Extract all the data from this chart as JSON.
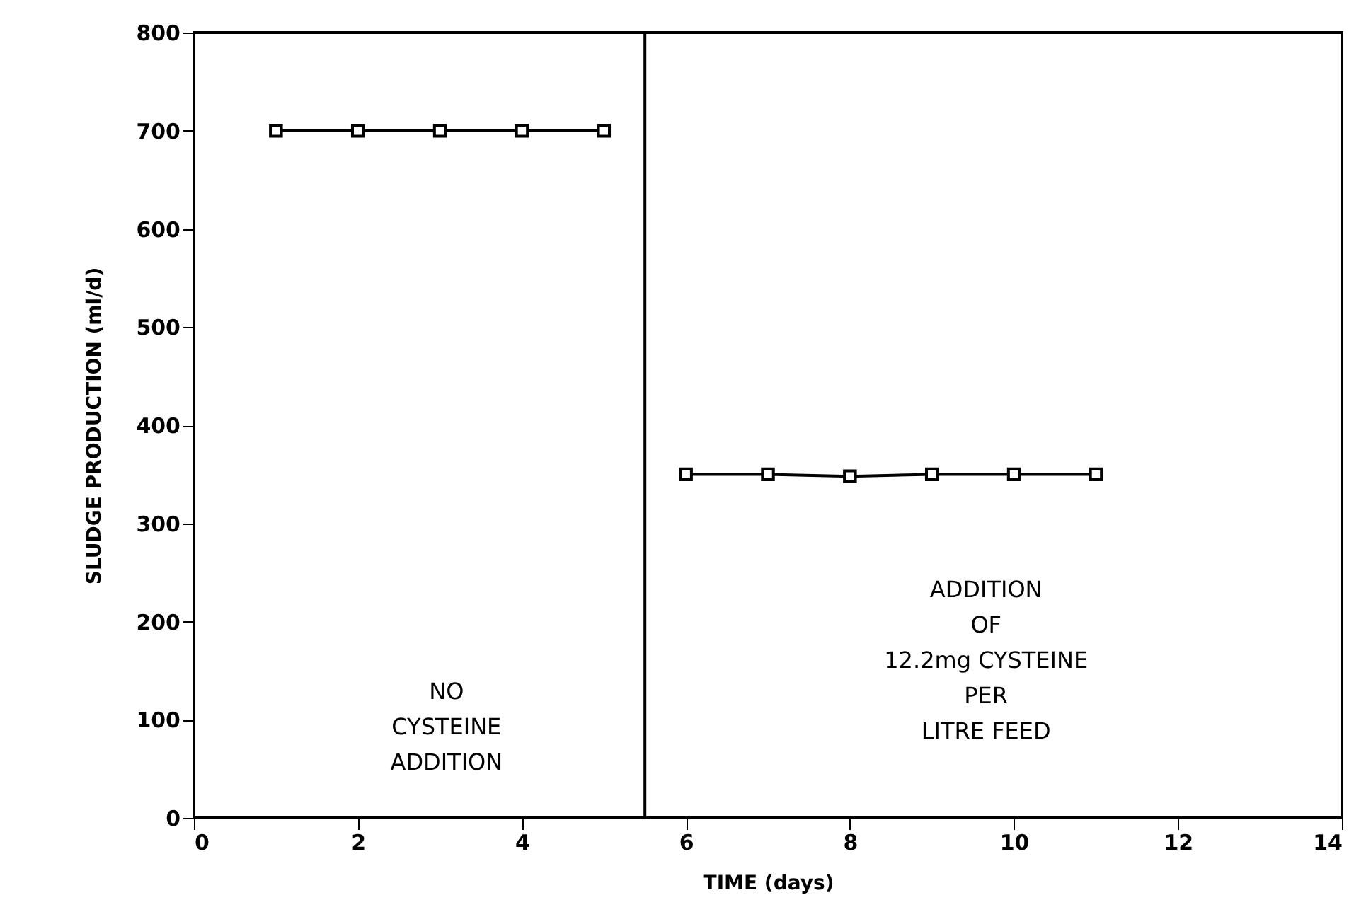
{
  "chart_data": {
    "type": "line",
    "xlabel": "TIME (days)",
    "ylabel": "SLUDGE PRODUCTION (ml/d)",
    "series": [
      {
        "color": "#000000",
        "x": [
          1,
          2,
          3,
          4,
          5
        ],
        "values": [
          700,
          700,
          700,
          700,
          700
        ]
      },
      {
        "color": "#000000",
        "x": [
          6,
          7,
          8,
          9,
          10,
          11
        ],
        "values": [
          350,
          350,
          348,
          350,
          350,
          350
        ]
      }
    ],
    "xlim": [
      0,
      14
    ],
    "xticks": [
      0,
      2,
      4,
      6,
      8,
      10,
      12,
      14
    ],
    "ylim": [
      0,
      800
    ],
    "yticks": [
      0,
      100,
      200,
      300,
      400,
      500,
      600,
      700,
      800
    ],
    "grid": false,
    "marker": "square",
    "line_style": "solid",
    "ref_lines": [
      {
        "axis": "x",
        "value": 5.5,
        "color": "#000000"
      }
    ],
    "annotations": [
      "NO\nCYSTEINE\nADDITION",
      "ADDITION\nOF\n12.2mg CYSTEINE\nPER\nLITRE FEED"
    ]
  }
}
